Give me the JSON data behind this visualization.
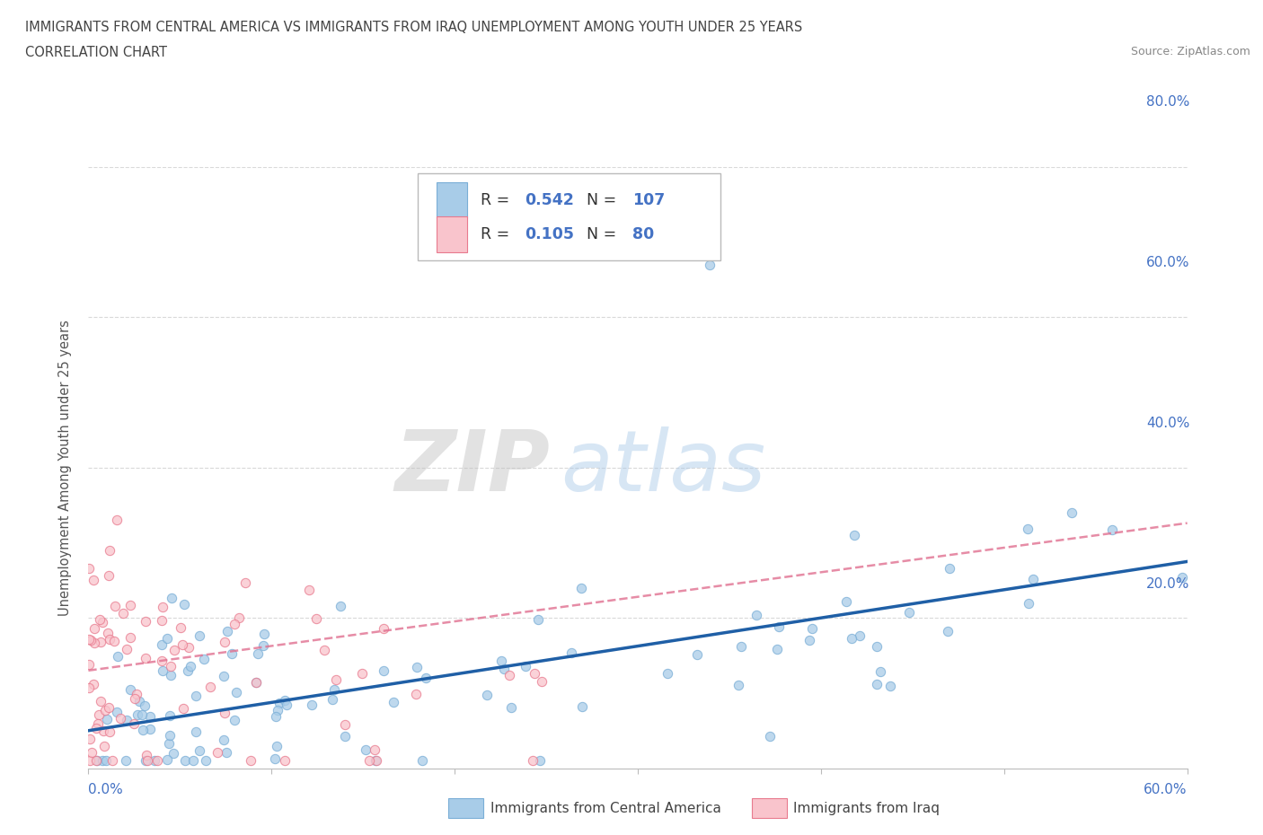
{
  "title_line1": "IMMIGRANTS FROM CENTRAL AMERICA VS IMMIGRANTS FROM IRAQ UNEMPLOYMENT AMONG YOUTH UNDER 25 YEARS",
  "title_line2": "CORRELATION CHART",
  "source_text": "Source: ZipAtlas.com",
  "legend_label1": "Immigrants from Central America",
  "legend_label2": "Immigrants from Iraq",
  "R1": "0.542",
  "N1": "107",
  "R2": "0.105",
  "N2": "80",
  "color_blue": "#a8cce8",
  "color_blue_edge": "#7aaed6",
  "color_blue_line": "#1f5fa6",
  "color_pink": "#f9c4cc",
  "color_pink_edge": "#e87a8e",
  "color_pink_line": "#e05070",
  "color_trend_pink_dash": "#e07090",
  "watermark_zip": "#c8c8c8",
  "watermark_atlas": "#b8cfe8",
  "background_color": "#ffffff",
  "title_color": "#444444",
  "axis_label_color": "#4472c4",
  "grid_color": "#d0d0d0",
  "ylabel_label": "Unemployment Among Youth under 25 years",
  "xlim": [
    0.0,
    0.6
  ],
  "ylim": [
    0.0,
    0.8
  ],
  "yticks": [
    0.0,
    0.2,
    0.4,
    0.6,
    0.8
  ],
  "ytick_labels": [
    "",
    "20.0%",
    "40.0%",
    "60.0%",
    "80.0%"
  ],
  "xtick_labels": [
    "0.0%",
    "",
    "",
    "",
    "",
    "",
    "60.0%"
  ]
}
